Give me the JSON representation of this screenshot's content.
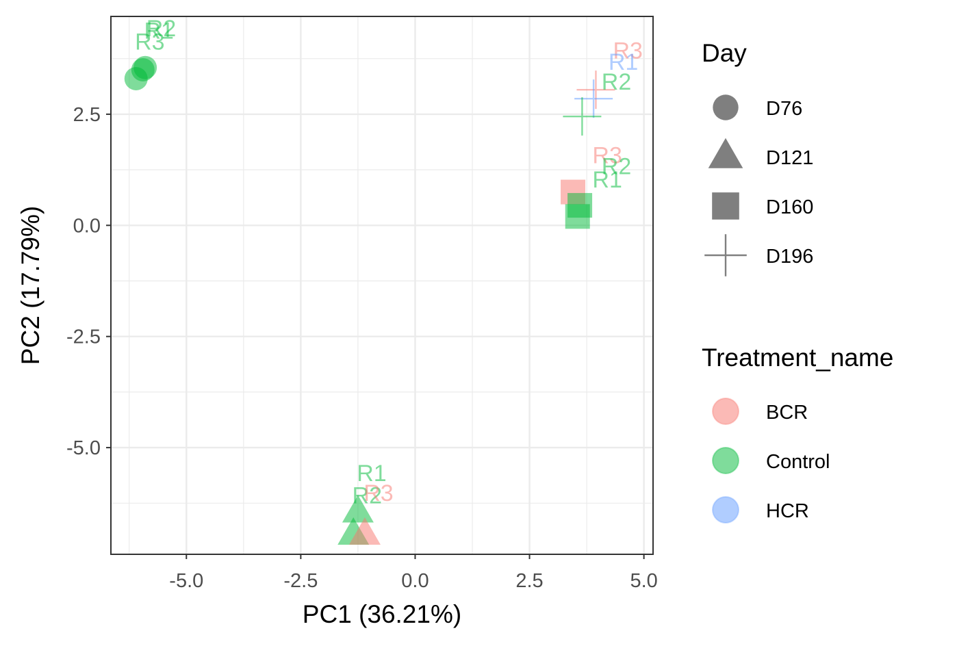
{
  "chart_data": {
    "type": "scatter",
    "xlabel": "PC1 (36.21%)",
    "ylabel": "PC2 (17.79%)",
    "xlim": [
      -6.65,
      5.2
    ],
    "ylim": [
      -7.4,
      4.7
    ],
    "x_ticks": [
      "-5.0",
      "-2.5",
      "0.0",
      "2.5",
      "5.0"
    ],
    "y_ticks": [
      "2.5",
      "0.0",
      "-2.5",
      "-5.0"
    ],
    "grid": true,
    "legend_position": "right",
    "shape_legend": {
      "title": "Day",
      "items": [
        {
          "label": "D76",
          "shape": "circle"
        },
        {
          "label": "D121",
          "shape": "triangle"
        },
        {
          "label": "D160",
          "shape": "square"
        },
        {
          "label": "D196",
          "shape": "cross"
        }
      ]
    },
    "color_legend": {
      "title": "Treatment_name",
      "items": [
        {
          "label": "BCR",
          "color": "#F8766D"
        },
        {
          "label": "Control",
          "color": "#00BA38"
        },
        {
          "label": "HCR",
          "color": "#619CFF"
        }
      ]
    },
    "points": [
      {
        "label": "R1",
        "treatment": "Control",
        "day": "D76",
        "x": -5.95,
        "y": 3.5,
        "lx": -5.6,
        "ly": 4.2
      },
      {
        "label": "R2",
        "treatment": "Control",
        "day": "D76",
        "x": -5.9,
        "y": 3.55,
        "lx": -5.55,
        "ly": 4.25
      },
      {
        "label": "R3",
        "treatment": "Control",
        "day": "D76",
        "x": -6.1,
        "y": 3.3,
        "lx": -5.8,
        "ly": 3.95
      },
      {
        "label": "R1",
        "treatment": "Control",
        "day": "D121",
        "x": -1.25,
        "y": -6.45,
        "lx": -0.95,
        "ly": -5.75
      },
      {
        "label": "R2",
        "treatment": "Control",
        "day": "D121",
        "x": -1.35,
        "y": -6.95,
        "lx": -1.05,
        "ly": -6.25
      },
      {
        "label": "R3",
        "treatment": "BCR",
        "day": "D121",
        "x": -1.1,
        "y": -6.95,
        "lx": -0.8,
        "ly": -6.2
      },
      {
        "label": "R3",
        "treatment": "BCR",
        "day": "D160",
        "x": 3.45,
        "y": 0.75,
        "lx": 4.2,
        "ly": 1.4
      },
      {
        "label": "R1",
        "treatment": "Control",
        "day": "D160",
        "x": 3.6,
        "y": 0.45,
        "lx": 4.2,
        "ly": 0.85
      },
      {
        "label": "R2",
        "treatment": "Control",
        "day": "D160",
        "x": 3.55,
        "y": 0.2,
        "lx": 4.4,
        "ly": 1.15
      },
      {
        "label": "R3",
        "treatment": "BCR",
        "day": "D196",
        "x": 3.95,
        "y": 3.05,
        "lx": 4.65,
        "ly": 3.75
      },
      {
        "label": "R1",
        "treatment": "HCR",
        "day": "D196",
        "x": 3.9,
        "y": 2.85,
        "lx": 4.55,
        "ly": 3.5
      },
      {
        "label": "R2",
        "treatment": "Control",
        "day": "D196",
        "x": 3.65,
        "y": 2.45,
        "lx": 4.4,
        "ly": 3.05
      }
    ]
  }
}
